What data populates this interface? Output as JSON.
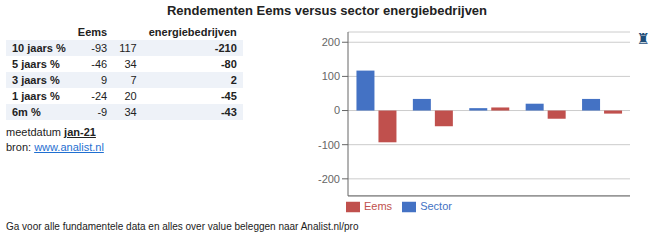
{
  "chart_data": {
    "type": "bar",
    "title": "Rendementen Eems versus sector energiebedrijven",
    "categories": [
      null,
      null,
      null,
      null,
      null
    ],
    "series": [
      {
        "name": "Sector",
        "color": "#4472C4",
        "values": [
          117,
          34,
          7,
          20,
          34
        ]
      },
      {
        "name": "Eems",
        "color": "#C0504D",
        "values": [
          -93,
          -46,
          9,
          -24,
          -9
        ]
      }
    ],
    "ylim": [
      -250,
      230
    ],
    "yticks": [
      -200,
      -100,
      0,
      100,
      200
    ],
    "grid": true,
    "legend": "lower left",
    "tick_labels": "y",
    "annotations": [
      "♜"
    ]
  },
  "table": {
    "headers": [
      "Eems",
      "energiebedrijven"
    ],
    "row_labels": [
      "10 jaars %",
      "5 jaars %",
      "3 jaars %",
      "1 jaars %",
      "6m %"
    ],
    "eems": [
      -93,
      -46,
      9,
      -24,
      -9
    ],
    "sector": [
      117,
      34,
      7,
      20,
      34
    ],
    "difference": [
      -210,
      -80,
      2,
      -45,
      -43
    ],
    "notes": [
      "meetdatum",
      "jan-21",
      "bron:",
      "www.analist.nl"
    ],
    "footer": "Ga voor alle fundamentele data en alles over value beleggen naar Analist.nl/pro"
  }
}
